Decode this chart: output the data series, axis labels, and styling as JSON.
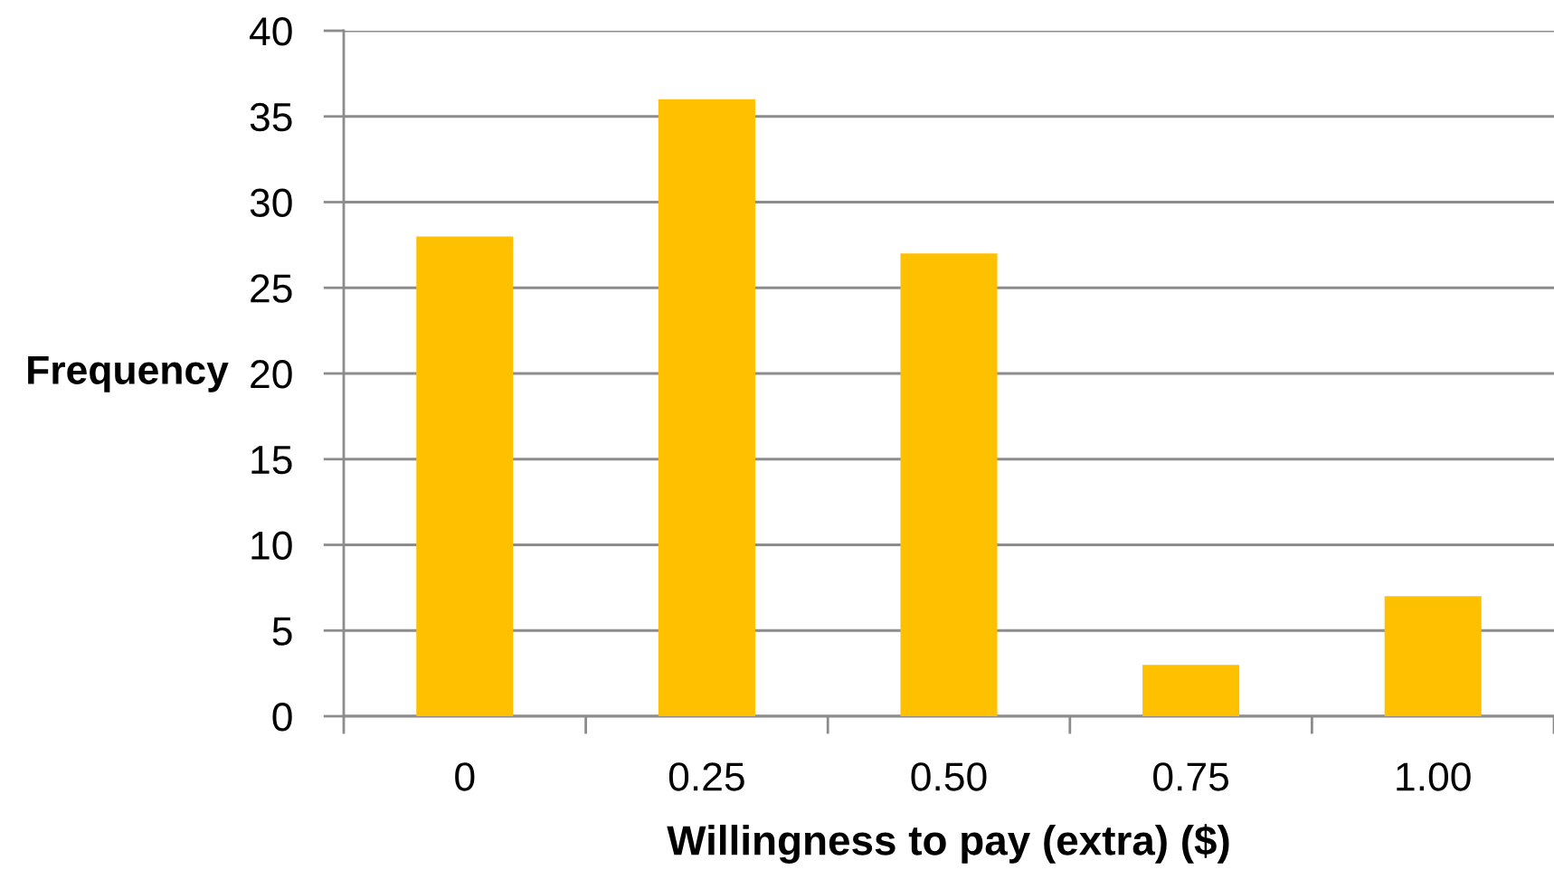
{
  "chart_data": {
    "type": "bar",
    "xlabel": "Willingness to pay (extra) ($)",
    "ylabel": "Frequency",
    "categories": [
      "0",
      "0.25",
      "0.50",
      "0.75",
      "1.00"
    ],
    "values": [
      28,
      36,
      27,
      3,
      7
    ],
    "color": "#ffc000",
    "ylim": [
      0,
      40
    ],
    "yticks": [
      0,
      5,
      10,
      15,
      20,
      25,
      30,
      35,
      40
    ],
    "grid": "y"
  }
}
